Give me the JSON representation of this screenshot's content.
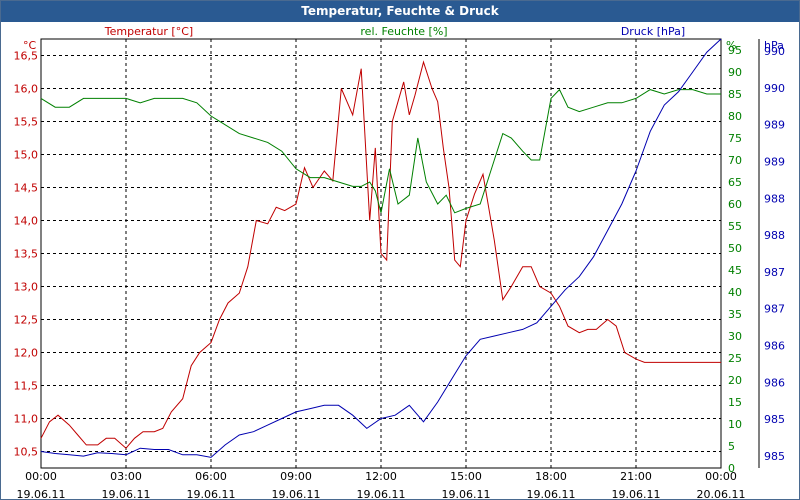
{
  "window": {
    "title": "Temperatur, Feuchte & Druck"
  },
  "colors": {
    "temperature": "#c00000",
    "humidity": "#008000",
    "pressure": "#0000b0",
    "grid": "#000000",
    "axis_text": "#000000"
  },
  "chart_data": {
    "type": "line",
    "title": "Temperatur, Feuchte & Druck",
    "grid": true,
    "legend": "top",
    "x_ticks": [
      {
        "time": "00:00",
        "date": "19.06.11"
      },
      {
        "time": "03:00",
        "date": "19.06.11"
      },
      {
        "time": "06:00",
        "date": "19.06.11"
      },
      {
        "time": "09:00",
        "date": "19.06.11"
      },
      {
        "time": "12:00",
        "date": "19.06.11"
      },
      {
        "time": "15:00",
        "date": "19.06.11"
      },
      {
        "time": "18:00",
        "date": "19.06.11"
      },
      {
        "time": "21:00",
        "date": "19.06.11"
      },
      {
        "time": "00:00",
        "date": "20.06.11"
      }
    ],
    "x_hours_range": [
      0,
      24
    ],
    "axes": {
      "temperature": {
        "label": "Temperatur [°C]",
        "unit": "°C",
        "ylim": [
          10.25,
          16.75
        ],
        "ticks": [
          "10,5",
          "11,0",
          "11,5",
          "12,0",
          "12,5",
          "13,0",
          "13,5",
          "14,0",
          "14,5",
          "15,0",
          "15,5",
          "16,0",
          "16,5"
        ]
      },
      "humidity": {
        "label": "rel. Feuchte [%]",
        "unit": "%",
        "ylim": [
          0,
          97.5
        ],
        "ticks": [
          "0",
          "5",
          "10",
          "15",
          "20",
          "25",
          "30",
          "35",
          "40",
          "45",
          "50",
          "55",
          "60",
          "65",
          "70",
          "75",
          "80",
          "85",
          "90",
          "95"
        ]
      },
      "pressure": {
        "label": "Druck [hPa]",
        "unit": "hPa",
        "ylim": [
          984.5,
          991.0
        ],
        "ticks": [
          "985",
          "985",
          "986",
          "986",
          "987",
          "987",
          "988",
          "988",
          "989",
          "989",
          "990",
          "990"
        ]
      }
    },
    "series": [
      {
        "name": "Temperatur [°C]",
        "axis": "temperature",
        "x": [
          0,
          0.3,
          0.6,
          1,
          1.3,
          1.6,
          2,
          2.3,
          2.6,
          3,
          3.3,
          3.6,
          4,
          4.3,
          4.6,
          5,
          5.3,
          5.6,
          6,
          6.3,
          6.6,
          7,
          7.3,
          7.6,
          8,
          8.3,
          8.6,
          9,
          9.3,
          9.6,
          10,
          10.3,
          10.6,
          11,
          11.3,
          11.6,
          11.8,
          12,
          12.2,
          12.4,
          12.6,
          12.8,
          13,
          13.2,
          13.5,
          13.8,
          14,
          14.2,
          14.4,
          14.6,
          14.8,
          15,
          15.3,
          15.6,
          16,
          16.3,
          16.6,
          17,
          17.3,
          17.6,
          18,
          18.3,
          18.6,
          19,
          19.3,
          19.6,
          20,
          20.3,
          20.6,
          21,
          21.3,
          21.6,
          22,
          22.3,
          22.6,
          23,
          23.3,
          23.6,
          24
        ],
        "values": [
          10.7,
          10.95,
          11.05,
          10.9,
          10.75,
          10.6,
          10.6,
          10.7,
          10.7,
          10.55,
          10.7,
          10.8,
          10.8,
          10.85,
          11.1,
          11.3,
          11.8,
          12.0,
          12.15,
          12.5,
          12.75,
          12.9,
          13.3,
          14.0,
          13.95,
          14.2,
          14.15,
          14.25,
          14.8,
          14.5,
          14.75,
          14.6,
          16.0,
          15.6,
          16.3,
          14.0,
          15.1,
          13.5,
          13.4,
          15.5,
          15.8,
          16.1,
          15.6,
          15.9,
          16.4,
          16.0,
          15.8,
          15.1,
          14.5,
          13.4,
          13.3,
          14.0,
          14.4,
          14.7,
          13.7,
          12.8,
          13.0,
          13.3,
          13.3,
          13.0,
          12.9,
          12.7,
          12.4,
          12.3,
          12.35,
          12.35,
          12.5,
          12.4,
          12.0,
          11.9,
          11.85,
          11.85,
          11.85,
          11.85,
          11.85,
          11.85,
          11.85,
          11.85,
          11.85
        ]
      },
      {
        "name": "rel. Feuchte [%]",
        "axis": "humidity",
        "x": [
          0,
          0.5,
          1,
          1.5,
          2,
          2.5,
          3,
          3.5,
          4,
          4.5,
          5,
          5.5,
          6,
          6.5,
          7,
          7.5,
          8,
          8.5,
          9,
          9.5,
          10,
          10.5,
          11,
          11.3,
          11.6,
          11.8,
          12,
          12.3,
          12.6,
          13,
          13.3,
          13.6,
          14,
          14.3,
          14.6,
          15,
          15.5,
          16,
          16.3,
          16.6,
          17,
          17.3,
          17.6,
          18,
          18.3,
          18.6,
          19,
          19.5,
          20,
          20.5,
          21,
          21.5,
          22,
          22.5,
          23,
          23.5,
          24
        ],
        "values": [
          84,
          82,
          82,
          84,
          84,
          84,
          84,
          83,
          84,
          84,
          84,
          83,
          80,
          78,
          76,
          75,
          74,
          72,
          68,
          66,
          66,
          65,
          64,
          64,
          65,
          63,
          58,
          68,
          60,
          62,
          75,
          65,
          60,
          62,
          58,
          59,
          60,
          70,
          76,
          75,
          72,
          70,
          70,
          84,
          86,
          82,
          81,
          82,
          83,
          83,
          84,
          86,
          85,
          86,
          86,
          85,
          85
        ]
      },
      {
        "name": "Druck [hPa]",
        "axis": "pressure",
        "x": [
          0,
          0.5,
          1,
          1.5,
          2,
          2.5,
          3,
          3.5,
          4,
          4.5,
          5,
          5.5,
          6,
          6.5,
          7,
          7.5,
          8,
          8.5,
          9,
          9.5,
          10,
          10.5,
          11,
          11.5,
          12,
          12.5,
          13,
          13.5,
          14,
          14.5,
          15,
          15.5,
          16,
          16.5,
          17,
          17.5,
          18,
          18.5,
          19,
          19.5,
          20,
          20.5,
          21,
          21.5,
          22,
          22.5,
          23,
          23.5,
          24
        ],
        "values": [
          984.75,
          984.72,
          984.7,
          984.68,
          984.73,
          984.72,
          984.7,
          984.8,
          984.78,
          984.78,
          984.7,
          984.7,
          984.66,
          984.85,
          985.0,
          985.05,
          985.15,
          985.25,
          985.35,
          985.4,
          985.45,
          985.45,
          985.3,
          985.1,
          985.25,
          985.3,
          985.45,
          985.2,
          985.5,
          985.85,
          986.2,
          986.45,
          986.5,
          986.55,
          986.6,
          986.7,
          986.95,
          987.2,
          987.4,
          987.7,
          988.1,
          988.5,
          989.0,
          989.6,
          990.0,
          990.2,
          990.5,
          990.8,
          991.0
        ]
      }
    ]
  }
}
